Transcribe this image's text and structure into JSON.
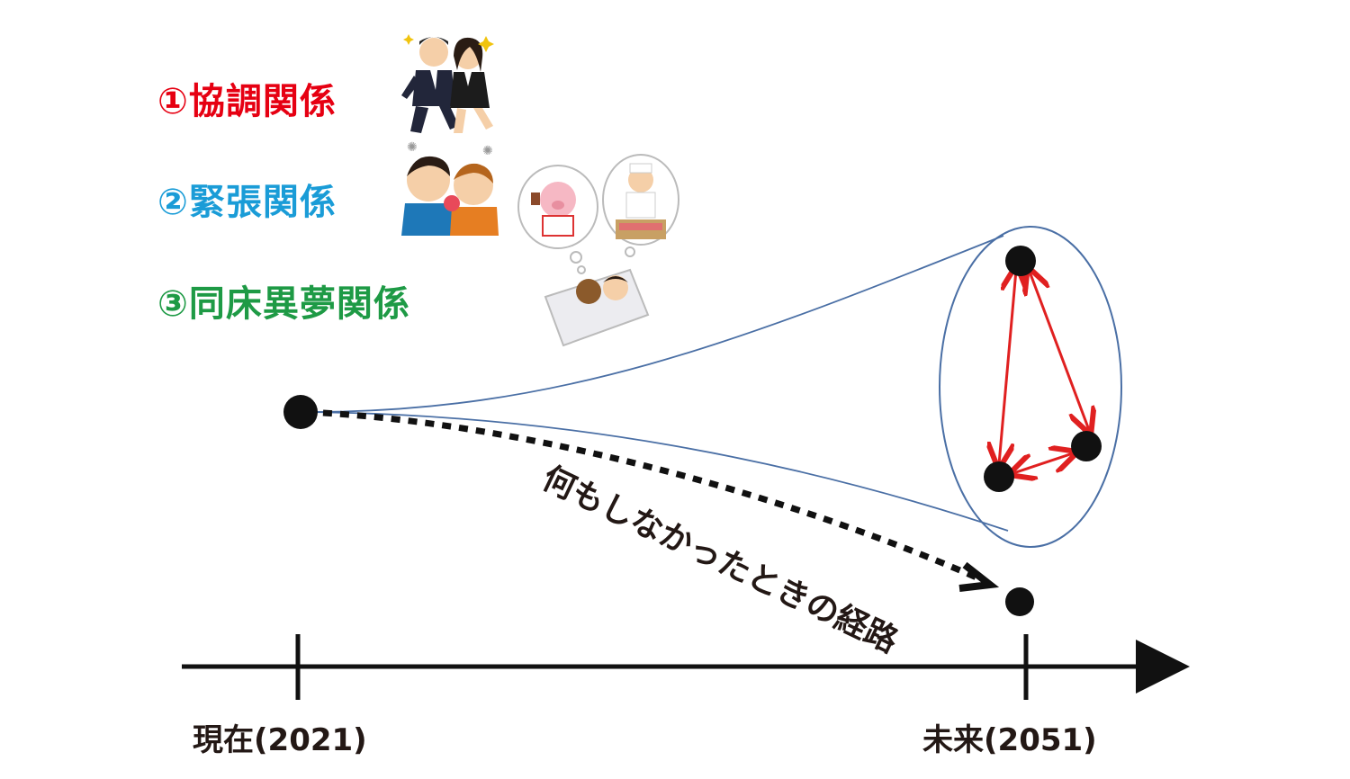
{
  "colors": {
    "coordination": "#e60012",
    "tension": "#1a9cd7",
    "dream": "#1e9a45",
    "arrow_red": "#e02020",
    "outline_blue": "#4a6fa5",
    "ink": "#111111"
  },
  "legend": [
    {
      "label": "①協調関係",
      "illustration": "business-people-running-icon"
    },
    {
      "label": "②緊張関係",
      "illustration": "kids-fighting-icon"
    },
    {
      "label": "③同床異夢関係",
      "illustration": "sleeping-dreaming-icon"
    }
  ],
  "path_label": "何もしなかったときの経路",
  "axis": {
    "start_label": "現在",
    "start_year": "(2021)",
    "end_label": "未来",
    "end_year": "(2051)"
  }
}
